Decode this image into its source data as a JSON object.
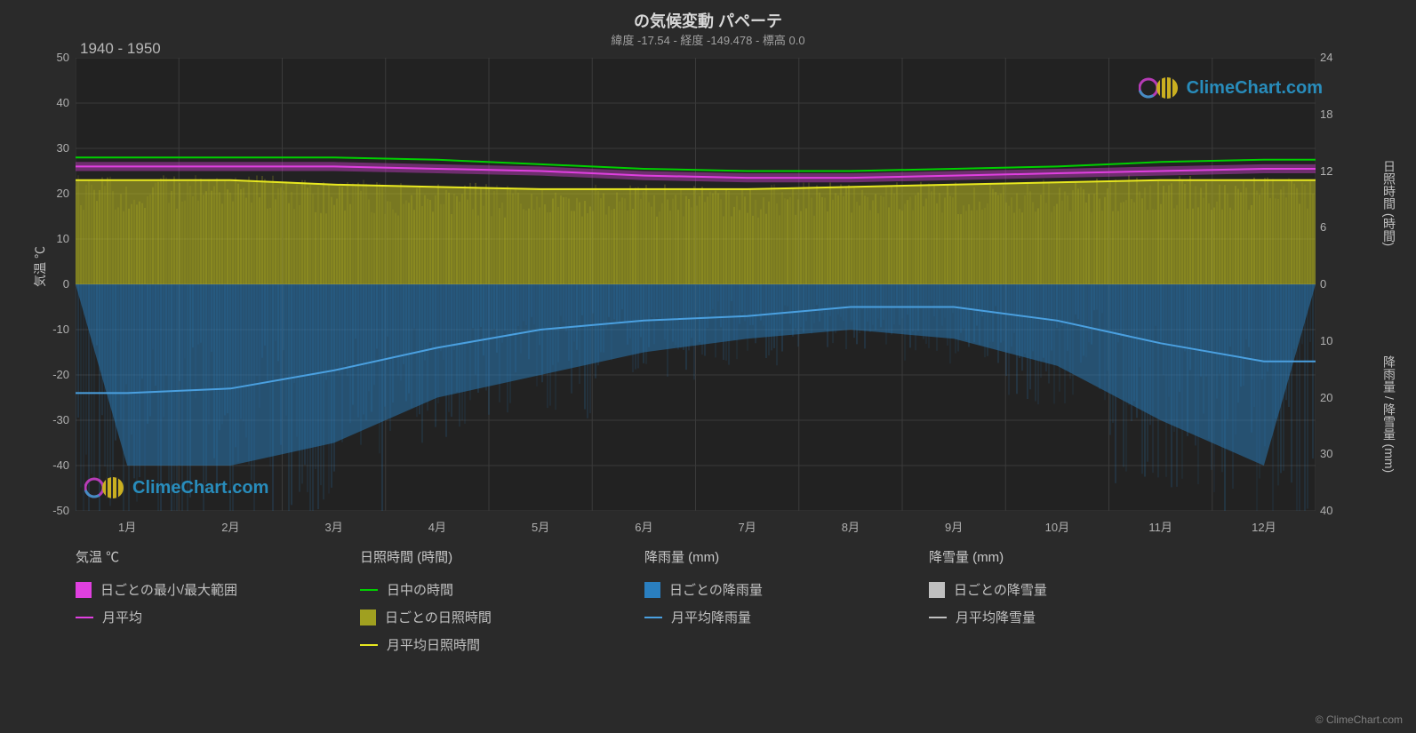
{
  "title": "の気候変動 パペーテ",
  "subtitle": "緯度 -17.54 - 経度 -149.478 - 標高 0.0",
  "period_label": "1940 - 1950",
  "background_color": "#2a2a2a",
  "plot_background": "#222222",
  "grid_color": "#3a3a3a",
  "text_color": "#c8c8c8",
  "chart": {
    "left_axis": {
      "label": "気温 ℃",
      "min": -50,
      "max": 50,
      "tick_step": 10,
      "ticks": [
        50,
        40,
        30,
        20,
        10,
        0,
        -10,
        -20,
        -30,
        -40,
        -50
      ]
    },
    "right_axis_top": {
      "label": "日照時間 (時間)",
      "min": 0,
      "max": 24,
      "ticks": [
        24,
        18,
        12,
        6,
        0
      ]
    },
    "right_axis_bottom": {
      "label": "降雨量 / 降雪量 (mm)",
      "min": 0,
      "max": 40,
      "ticks": [
        0,
        10,
        20,
        30,
        40
      ]
    },
    "x_axis": {
      "labels": [
        "1月",
        "2月",
        "3月",
        "4月",
        "5月",
        "6月",
        "7月",
        "8月",
        "9月",
        "10月",
        "11月",
        "12月"
      ]
    },
    "series": {
      "temp_max_line": {
        "color": "#00d000",
        "values": [
          28,
          28,
          28,
          27.5,
          26.5,
          25.5,
          25,
          25,
          25.5,
          26,
          27,
          27.5
        ]
      },
      "temp_mean_line": {
        "color": "#e040e0",
        "values": [
          26,
          26,
          26,
          25.5,
          25,
          24,
          23.5,
          23.5,
          24,
          24.5,
          25,
          25.5
        ]
      },
      "temp_range_band": {
        "color": "#e040e0",
        "opacity": 0.4,
        "upper": [
          27,
          27,
          27,
          26.5,
          26,
          25,
          24.5,
          24.5,
          25,
          25.5,
          26,
          26.5
        ],
        "lower": [
          25,
          25,
          25,
          24.5,
          24,
          23,
          22.5,
          22.5,
          23,
          23.5,
          24,
          24.5
        ]
      },
      "sunshine_band": {
        "color": "#c0c020",
        "opacity": 0.55,
        "upper": [
          23,
          23,
          22,
          21.5,
          21,
          21,
          21,
          21.5,
          22,
          22.5,
          23,
          23
        ],
        "lower": [
          0,
          0,
          0,
          0,
          0,
          0,
          0,
          0,
          0,
          0,
          0,
          0
        ]
      },
      "sunshine_mean_line": {
        "color": "#e8e820",
        "values": [
          23,
          23,
          22,
          21.5,
          21,
          21,
          21,
          21.5,
          22,
          22.5,
          23,
          23
        ]
      },
      "rain_band": {
        "color": "#2a7fc0",
        "opacity": 0.5,
        "upper": [
          0,
          0,
          0,
          0,
          0,
          0,
          0,
          0,
          0,
          0,
          0,
          0
        ],
        "lower": [
          -40,
          -40,
          -35,
          -25,
          -20,
          -15,
          -12,
          -10,
          -12,
          -18,
          -30,
          -40
        ]
      },
      "rain_mean_line": {
        "color": "#4aa0e0",
        "values": [
          -24,
          -23,
          -19,
          -14,
          -10,
          -8,
          -7,
          -5,
          -5,
          -8,
          -13,
          -17
        ]
      }
    }
  },
  "legend": {
    "groups": [
      {
        "header": "気温 ℃",
        "items": [
          {
            "type": "swatch",
            "color": "#e040e0",
            "label": "日ごとの最小/最大範囲"
          },
          {
            "type": "line",
            "color": "#e040e0",
            "label": "月平均"
          }
        ]
      },
      {
        "header": "日照時間 (時間)",
        "items": [
          {
            "type": "line",
            "color": "#00d000",
            "label": "日中の時間"
          },
          {
            "type": "swatch",
            "color": "#a0a020",
            "label": "日ごとの日照時間"
          },
          {
            "type": "line",
            "color": "#e8e820",
            "label": "月平均日照時間"
          }
        ]
      },
      {
        "header": "降雨量 (mm)",
        "items": [
          {
            "type": "swatch",
            "color": "#2a7fc0",
            "label": "日ごとの降雨量"
          },
          {
            "type": "line",
            "color": "#4aa0e0",
            "label": "月平均降雨量"
          }
        ]
      },
      {
        "header": "降雪量 (mm)",
        "items": [
          {
            "type": "swatch",
            "color": "#c0c0c0",
            "label": "日ごとの降雪量"
          },
          {
            "type": "line",
            "color": "#c0c0c0",
            "label": "月平均降雪量"
          }
        ]
      }
    ]
  },
  "watermark": "ClimeChart.com",
  "watermark_color": "#2a9fd6",
  "copyright": "© ClimeChart.com"
}
